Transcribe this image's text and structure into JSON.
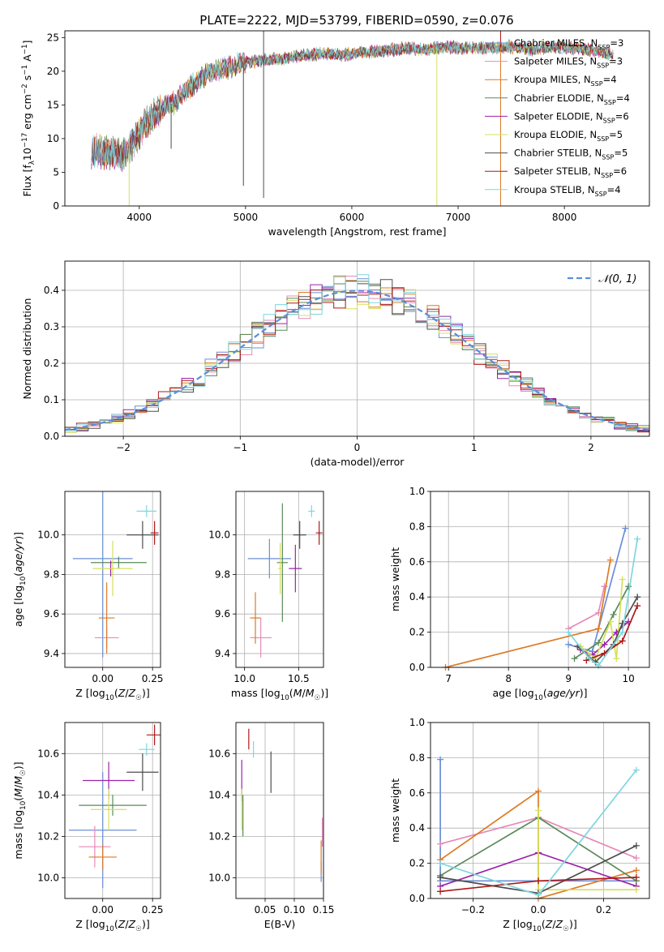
{
  "figure_title": "PLATE=2222, MJD=53799, FIBERID=0590, z=0.076",
  "colors": {
    "Chabrier MILES": "#6b8fd6",
    "Salpeter MILES": "#e68ab8",
    "Kroupa MILES": "#dd7a26",
    "Chabrier ELODIE": "#5a8a5a",
    "Salpeter ELODIE": "#9b22a8",
    "Kroupa ELODIE": "#d4e05a",
    "Chabrier STELIB": "#4d4d4d",
    "Salpeter STELIB": "#b01818",
    "Kroupa STELIB": "#7fd6df"
  },
  "chart_data": [
    {
      "id": "spectrum",
      "type": "line",
      "title": "PLATE=2222, MJD=53799, FIBERID=0590, z=0.076",
      "xlabel": "wavelength [Angstrom, rest frame]",
      "ylabel": "Flux [f_λ10^-17 erg cm^-2 s^-1 A^-1]",
      "xlim": [
        3300,
        8800
      ],
      "ylim": [
        0,
        26
      ],
      "xticks": [
        "4000",
        "5000",
        "6000",
        "7000",
        "8000"
      ],
      "yticks": [
        "0",
        "5",
        "10",
        "15",
        "20",
        "25"
      ],
      "grid": false,
      "legend_position": "top-right",
      "legend": [
        "Chabrier MILES, N_SSP=3",
        "Salpeter MILES, N_SSP=3",
        "Kroupa MILES, N_SSP=4",
        "Chabrier ELODIE, N_SSP=4",
        "Salpeter ELODIE, N_SSP=6",
        "Kroupa ELODIE, N_SSP=5",
        "Chabrier STELIB, N_SSP=5",
        "Salpeter STELIB, N_SSP=6",
        "Kroupa STELIB, N_SSP=4"
      ],
      "continuum": {
        "x": [
          3550,
          3700,
          3850,
          3950,
          4050,
          4150,
          4250,
          4350,
          4450,
          4550,
          4650,
          4750,
          4850,
          4950,
          5100,
          5300,
          5500,
          5700,
          5900,
          6100,
          6300,
          6500,
          6700,
          6900,
          7100,
          7300,
          7500,
          7700,
          7900,
          8100,
          8300,
          8450
        ],
        "y": [
          8.2,
          8.0,
          7.5,
          9.5,
          12.2,
          13.5,
          14.8,
          15.5,
          17.5,
          18.5,
          19.8,
          20.2,
          20.5,
          21.2,
          21.5,
          21.8,
          22.3,
          22.6,
          22.4,
          22.8,
          23.0,
          23.4,
          23.2,
          23.6,
          23.4,
          23.5,
          23.6,
          23.2,
          23.6,
          23.4,
          23.0,
          22.5
        ]
      },
      "spikes": [
        {
          "x": 3905,
          "y": 0.0
        },
        {
          "x": 4980,
          "y": 3.0
        },
        {
          "x": 5170,
          "y": 1.2
        },
        {
          "x": 5170,
          "y": 26.0
        },
        {
          "x": 6800,
          "y": 0.0
        },
        {
          "x": 7400,
          "y": 0.0
        },
        {
          "x": 7400,
          "y": 26.0
        },
        {
          "x": 4300,
          "y": 8.5
        }
      ]
    },
    {
      "id": "residuals",
      "type": "bar",
      "xlabel": "(data-model)/error",
      "ylabel": "Normed distribution",
      "xlim": [
        -2.5,
        2.5
      ],
      "ylim": [
        0,
        0.48
      ],
      "xticks": [
        "−2",
        "−1",
        "0",
        "1",
        "2"
      ],
      "yticks": [
        "0.0",
        "0.1",
        "0.2",
        "0.3",
        "0.4"
      ],
      "grid": true,
      "legend_position": "top-right",
      "legend": [
        "𝒩(0, 1)"
      ],
      "bin_width": 0.1,
      "reference_curve": "normal(0,1)"
    },
    {
      "id": "age-vs-Z",
      "type": "scatter",
      "xlabel": "Z [log10(Z/Z☉)]",
      "ylabel": "age  [log10(age/yr)]",
      "xlim": [
        -0.19,
        0.29
      ],
      "ylim": [
        9.33,
        10.22
      ],
      "xticks": [
        "0.00",
        "0.25"
      ],
      "yticks": [
        "9.4",
        "9.6",
        "9.8",
        "10.0"
      ],
      "grid": true,
      "points": [
        {
          "series": "Chabrier MILES",
          "x": 0.0,
          "y": 9.88,
          "xerr": 0.15,
          "yerr": 0.5
        },
        {
          "series": "Salpeter MILES",
          "x": 0.02,
          "y": 9.48,
          "xerr": 0.06,
          "yerr": 0.05
        },
        {
          "series": "Kroupa MILES",
          "x": 0.02,
          "y": 9.58,
          "xerr": 0.04,
          "yerr": 0.18
        },
        {
          "series": "Chabrier ELODIE",
          "x": 0.08,
          "y": 9.86,
          "xerr": 0.14,
          "yerr": 0.03
        },
        {
          "series": "Salpeter ELODIE",
          "x": 0.04,
          "y": 9.83,
          "xerr": 0.01,
          "yerr": 0.04
        },
        {
          "series": "Kroupa ELODIE",
          "x": 0.05,
          "y": 9.83,
          "xerr": 0.1,
          "yerr": 0.14
        },
        {
          "series": "Chabrier STELIB",
          "x": 0.2,
          "y": 10.0,
          "xerr": 0.08,
          "yerr": 0.07
        },
        {
          "series": "Salpeter STELIB",
          "x": 0.26,
          "y": 10.01,
          "xerr": 0.02,
          "yerr": 0.06
        },
        {
          "series": "Kroupa STELIB",
          "x": 0.22,
          "y": 10.12,
          "xerr": 0.05,
          "yerr": 0.03
        }
      ]
    },
    {
      "id": "age-vs-mass",
      "type": "scatter",
      "xlabel": "mass [log10(M/M☉)]",
      "ylabel": "",
      "xlim": [
        9.92,
        10.73
      ],
      "ylim": [
        9.33,
        10.22
      ],
      "xticks": [
        "10.0",
        "10.5"
      ],
      "yticks": [
        "9.4",
        "9.6",
        "9.8",
        "10.0"
      ],
      "grid": true,
      "points": [
        {
          "series": "Chabrier MILES",
          "x": 10.23,
          "y": 9.88,
          "xerr": 0.2,
          "yerr": 0.1
        },
        {
          "series": "Salpeter MILES",
          "x": 10.15,
          "y": 9.48,
          "xerr": 0.1,
          "yerr": 0.1
        },
        {
          "series": "Kroupa MILES",
          "x": 10.1,
          "y": 9.58,
          "xerr": 0.05,
          "yerr": 0.13
        },
        {
          "series": "Chabrier ELODIE",
          "x": 10.35,
          "y": 9.86,
          "xerr": 0.05,
          "yerr": 0.3
        },
        {
          "series": "Salpeter ELODIE",
          "x": 10.47,
          "y": 9.83,
          "xerr": 0.06,
          "yerr": 0.12
        },
        {
          "series": "Kroupa ELODIE",
          "x": 10.33,
          "y": 9.83,
          "xerr": 0.02,
          "yerr": 0.13
        },
        {
          "series": "Chabrier STELIB",
          "x": 10.51,
          "y": 10.0,
          "xerr": 0.06,
          "yerr": 0.07
        },
        {
          "series": "Salpeter STELIB",
          "x": 10.69,
          "y": 10.01,
          "xerr": 0.03,
          "yerr": 0.06
        },
        {
          "series": "Kroupa STELIB",
          "x": 10.62,
          "y": 10.12,
          "xerr": 0.03,
          "yerr": 0.03
        }
      ]
    },
    {
      "id": "weight-vs-age",
      "type": "line",
      "xlabel": "age  [log10(age/yr)]",
      "ylabel": "mass weight",
      "xlim": [
        6.7,
        10.35
      ],
      "ylim": [
        0,
        1.0
      ],
      "xticks": [
        "7",
        "8",
        "9",
        "10"
      ],
      "yticks": [
        "0.0",
        "0.2",
        "0.4",
        "0.6",
        "0.8",
        "1.0"
      ],
      "grid": true,
      "series": [
        {
          "color_key": "Chabrier MILES",
          "x": [
            9.0,
            9.4,
            9.95
          ],
          "y": [
            0.13,
            0.09,
            0.79
          ]
        },
        {
          "color_key": "Salpeter MILES",
          "x": [
            9.0,
            9.5,
            9.6
          ],
          "y": [
            0.22,
            0.31,
            0.46
          ]
        },
        {
          "color_key": "Kroupa MILES",
          "x": [
            6.95,
            9.5,
            9.7
          ],
          "y": [
            0.0,
            0.22,
            0.61
          ]
        },
        {
          "color_key": "Chabrier ELODIE",
          "x": [
            9.1,
            9.5,
            9.75,
            10.0
          ],
          "y": [
            0.05,
            0.14,
            0.3,
            0.46
          ]
        },
        {
          "color_key": "Salpeter ELODIE",
          "x": [
            9.2,
            9.4,
            9.6,
            9.8,
            10.0
          ],
          "y": [
            0.1,
            0.07,
            0.13,
            0.2,
            0.26
          ]
        },
        {
          "color_key": "Kroupa ELODIE",
          "x": [
            9.2,
            9.45,
            9.7,
            9.8,
            9.9
          ],
          "y": [
            0.12,
            0.05,
            0.26,
            0.05,
            0.5
          ]
        },
        {
          "color_key": "Chabrier STELIB",
          "x": [
            9.15,
            9.45,
            9.75,
            9.9,
            10.15
          ],
          "y": [
            0.12,
            0.03,
            0.13,
            0.25,
            0.4
          ]
        },
        {
          "color_key": "Salpeter STELIB",
          "x": [
            9.3,
            9.6,
            9.9,
            10.15
          ],
          "y": [
            0.04,
            0.08,
            0.15,
            0.35
          ]
        },
        {
          "color_key": "Kroupa STELIB",
          "x": [
            9.0,
            9.35,
            9.5,
            9.9,
            10.15
          ],
          "y": [
            0.2,
            0.05,
            0.01,
            0.2,
            0.73
          ]
        }
      ]
    },
    {
      "id": "mass-vs-Z",
      "type": "scatter",
      "xlabel": "Z [log10(Z/Z☉)]",
      "ylabel": "mass [log10(M/M☉)]",
      "xlim": [
        -0.19,
        0.29
      ],
      "ylim": [
        9.9,
        10.75
      ],
      "xticks": [
        "0.00",
        "0.25"
      ],
      "yticks": [
        "10.0",
        "10.2",
        "10.4",
        "10.6"
      ],
      "grid": true,
      "points": [
        {
          "series": "Chabrier MILES",
          "x": 0.0,
          "y": 10.23,
          "xerr": 0.17,
          "yerr": 0.28
        },
        {
          "series": "Salpeter MILES",
          "x": -0.04,
          "y": 10.15,
          "xerr": 0.08,
          "yerr": 0.1
        },
        {
          "series": "Kroupa MILES",
          "x": 0.0,
          "y": 10.1,
          "xerr": 0.07,
          "yerr": 0.06
        },
        {
          "series": "Chabrier ELODIE",
          "x": 0.05,
          "y": 10.35,
          "xerr": 0.17,
          "yerr": 0.05
        },
        {
          "series": "Salpeter ELODIE",
          "x": 0.03,
          "y": 10.47,
          "xerr": 0.13,
          "yerr": 0.09
        },
        {
          "series": "Kroupa ELODIE",
          "x": 0.03,
          "y": 10.33,
          "xerr": 0.09,
          "yerr": 0.1
        },
        {
          "series": "Chabrier STELIB",
          "x": 0.2,
          "y": 10.51,
          "xerr": 0.08,
          "yerr": 0.09
        },
        {
          "series": "Salpeter STELIB",
          "x": 0.26,
          "y": 10.69,
          "xerr": 0.04,
          "yerr": 0.05
        },
        {
          "series": "Kroupa STELIB",
          "x": 0.22,
          "y": 10.62,
          "xerr": 0.04,
          "yerr": 0.03
        }
      ]
    },
    {
      "id": "mass-vs-ebv",
      "type": "scatter",
      "xlabel": "E(B-V)",
      "ylabel": "",
      "xlim": [
        0.0,
        0.15
      ],
      "ylim": [
        9.9,
        10.75
      ],
      "xticks": [
        "0.05",
        "0.10",
        "0.15"
      ],
      "yticks": [
        "10.0",
        "10.2",
        "10.4",
        "10.6"
      ],
      "grid": true,
      "points": [
        {
          "series": "Chabrier MILES",
          "x": 0.146,
          "y": 10.03,
          "xerr": 0,
          "yerr": 0.05
        },
        {
          "series": "Salpeter MILES",
          "x": 0.148,
          "y": 10.22,
          "xerr": 0,
          "yerr": 0.07
        },
        {
          "series": "Kroupa MILES",
          "x": 0.146,
          "y": 10.1,
          "xerr": 0,
          "yerr": 0.08
        },
        {
          "series": "Chabrier ELODIE",
          "x": 0.012,
          "y": 10.3,
          "xerr": 0,
          "yerr": 0.1
        },
        {
          "series": "Salpeter ELODIE",
          "x": 0.01,
          "y": 10.47,
          "xerr": 0,
          "yerr": 0.1
        },
        {
          "series": "Kroupa ELODIE",
          "x": 0.01,
          "y": 10.33,
          "xerr": 0,
          "yerr": 0.1
        },
        {
          "series": "Chabrier STELIB",
          "x": 0.06,
          "y": 10.51,
          "xerr": 0,
          "yerr": 0.1
        },
        {
          "series": "Salpeter STELIB",
          "x": 0.022,
          "y": 10.67,
          "xerr": 0,
          "yerr": 0.05
        },
        {
          "series": "Kroupa STELIB",
          "x": 0.03,
          "y": 10.62,
          "xerr": 0,
          "yerr": 0.04
        }
      ]
    },
    {
      "id": "weight-vs-Z",
      "type": "line",
      "xlabel": "Z [log10(Z/Z☉)]",
      "ylabel": "mass weight",
      "xlim": [
        -0.33,
        0.34
      ],
      "ylim": [
        0,
        1.0
      ],
      "xticks": [
        "−0.2",
        "0.0",
        "0.2"
      ],
      "yticks": [
        "0.0",
        "0.2",
        "0.4",
        "0.6",
        "0.8",
        "1.0"
      ],
      "grid": true,
      "series": [
        {
          "color_key": "Chabrier MILES",
          "x": [
            -0.3,
            -0.3,
            0.0,
            0.3
          ],
          "y": [
            0.79,
            0.1,
            0.1,
            0.1
          ]
        },
        {
          "color_key": "Salpeter MILES",
          "x": [
            -0.3,
            0.0,
            0.3
          ],
          "y": [
            0.31,
            0.46,
            0.23
          ]
        },
        {
          "color_key": "Kroupa MILES",
          "x": [
            -0.3,
            0.0,
            0.0,
            0.3
          ],
          "y": [
            0.22,
            0.61,
            0.0,
            0.16
          ]
        },
        {
          "color_key": "Chabrier ELODIE",
          "x": [
            -0.3,
            0.0,
            0.3
          ],
          "y": [
            0.13,
            0.46,
            0.1
          ]
        },
        {
          "color_key": "Salpeter ELODIE",
          "x": [
            -0.3,
            0.0,
            0.3
          ],
          "y": [
            0.07,
            0.26,
            0.07
          ]
        },
        {
          "color_key": "Kroupa ELODIE",
          "x": [
            0.0,
            0.0,
            0.3
          ],
          "y": [
            0.5,
            0.05,
            0.05
          ]
        },
        {
          "color_key": "Chabrier STELIB",
          "x": [
            -0.3,
            0.0,
            0.3
          ],
          "y": [
            0.12,
            0.03,
            0.3
          ]
        },
        {
          "color_key": "Salpeter STELIB",
          "x": [
            -0.3,
            0.0,
            0.3
          ],
          "y": [
            0.04,
            0.1,
            0.12
          ]
        },
        {
          "color_key": "Kroupa STELIB",
          "x": [
            -0.3,
            0.0,
            0.3
          ],
          "y": [
            0.2,
            0.02,
            0.73
          ]
        }
      ]
    }
  ]
}
